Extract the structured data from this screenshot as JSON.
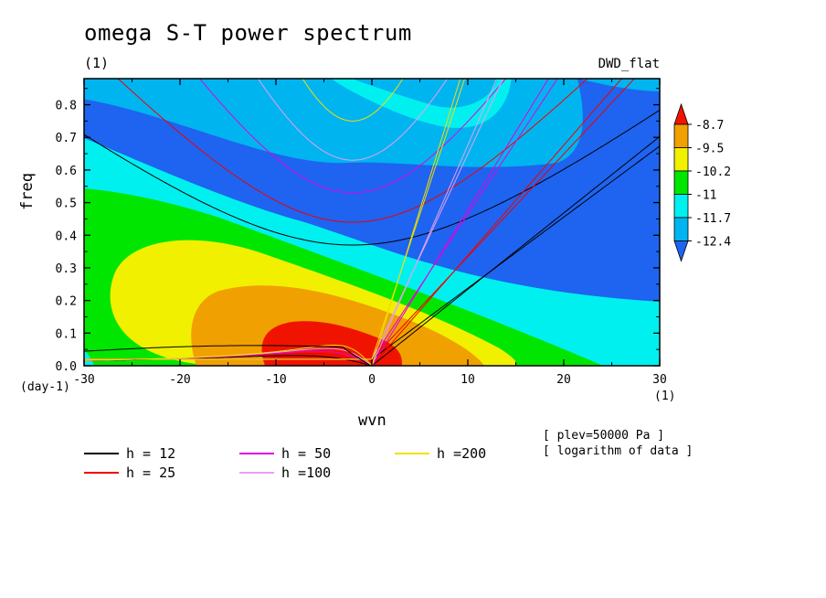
{
  "figure": {
    "title": "omega S-T power spectrum",
    "subtitle_left": "(1)",
    "subtitle_right": "DWD_flat",
    "notes": [
      "[ plev=50000 Pa ]",
      "[ logarithm of data ]"
    ]
  },
  "chart_data": {
    "type": "heatmap",
    "xlabel": "wvn",
    "ylabel": "freq",
    "x_unit": "(1)",
    "y_unit": "(day-1)",
    "xlim": [
      -30,
      30
    ],
    "ylim": [
      0.0,
      0.88
    ],
    "x_ticks": [
      "-30",
      "-20",
      "-10",
      "0",
      "10",
      "20",
      "30"
    ],
    "y_ticks": [
      "0.0",
      "0.1",
      "0.2",
      "0.3",
      "0.4",
      "0.5",
      "0.6",
      "0.7",
      "0.8"
    ],
    "colorbar": {
      "labels": [
        "-8.7",
        "-9.5",
        "-10.2",
        "-11",
        "-11.7",
        "-12.4"
      ],
      "colors": [
        "#1e64f0",
        "#00b4f0",
        "#00f0f0",
        "#00e600",
        "#f0f000",
        "#f0a000",
        "#f01400"
      ]
    },
    "dispersion_curves": [
      {
        "h": 12,
        "color": "#000000"
      },
      {
        "h": 25,
        "color": "#f00000"
      },
      {
        "h": 50,
        "color": "#e000e0"
      },
      {
        "h": 100,
        "color": "#e6a0f0"
      },
      {
        "h": 200,
        "color": "#f0e000"
      }
    ]
  },
  "legend": [
    {
      "label": "h = 12",
      "color": "#000000"
    },
    {
      "label": "h = 25",
      "color": "#f00000"
    },
    {
      "label": "h = 50",
      "color": "#e000e0"
    },
    {
      "label": "h =100",
      "color": "#e6a0f0"
    },
    {
      "label": "h =200",
      "color": "#f0e000"
    }
  ]
}
